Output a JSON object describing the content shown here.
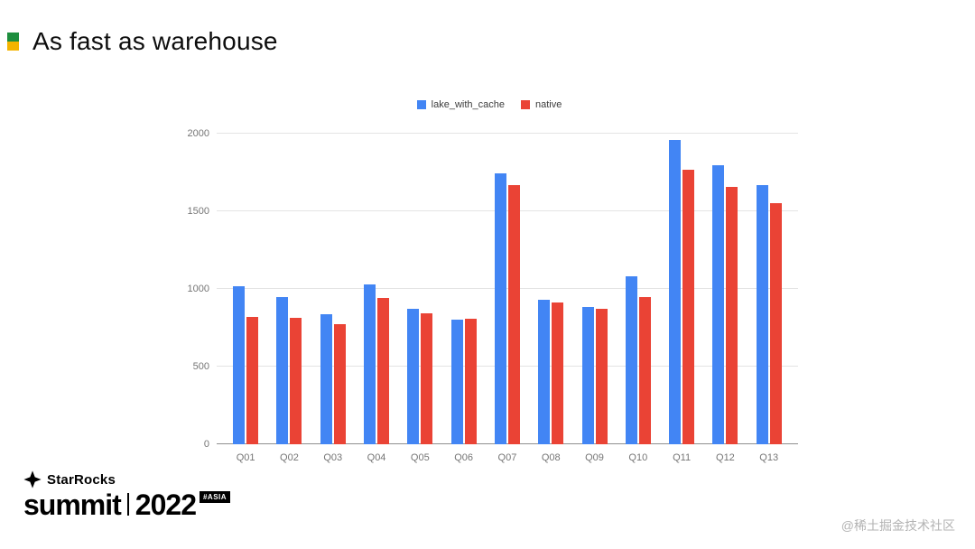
{
  "slide": {
    "title": "As fast as warehouse"
  },
  "chart_data": {
    "type": "bar",
    "title": "",
    "categories": [
      "Q01",
      "Q02",
      "Q03",
      "Q04",
      "Q05",
      "Q06",
      "Q07",
      "Q08",
      "Q09",
      "Q10",
      "Q11",
      "Q12",
      "Q13"
    ],
    "series": [
      {
        "name": "lake_with_cache",
        "color": "#4285f4",
        "values": [
          1020,
          950,
          840,
          1030,
          870,
          805,
          1745,
          930,
          885,
          1080,
          1960,
          1795,
          1670
        ]
      },
      {
        "name": "native",
        "color": "#ea4335",
        "values": [
          820,
          815,
          775,
          940,
          845,
          810,
          1670,
          915,
          875,
          945,
          1765,
          1655,
          1555
        ]
      }
    ],
    "xlabel": "",
    "ylabel": "",
    "ylim": [
      0,
      2000
    ],
    "yticks": [
      0,
      500,
      1000,
      1500,
      2000
    ],
    "legend_position": "top",
    "grid": true
  },
  "footer": {
    "brand_name": "StarRocks",
    "event": "summit",
    "year": "2022",
    "badge": "#ASIA",
    "watermark": "@稀土掘金技术社区"
  },
  "colors": {
    "bullet_green": "#1e8e3e",
    "bullet_yellow": "#f4b400",
    "series_blue": "#4285f4",
    "series_red": "#ea4335"
  }
}
